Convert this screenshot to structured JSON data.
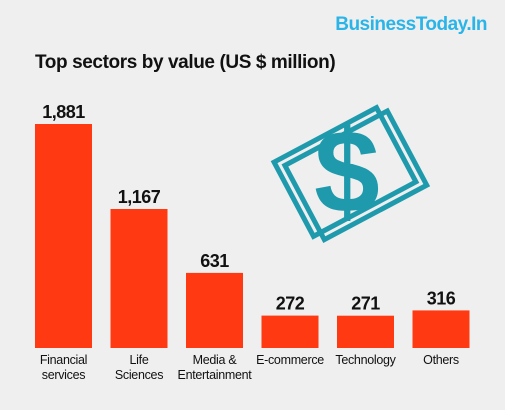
{
  "brand": {
    "name": "BusinessToday.In",
    "color": "#2ab4e8"
  },
  "chart_data": {
    "type": "bar",
    "title": "Top sectors by value (US $ million)",
    "categories": [
      "Financial\nservices",
      "Life\nSciences",
      "Media &\nEntertainment",
      "E-commerce",
      "Technology",
      "Others"
    ],
    "values": [
      1881,
      1167,
      631,
      272,
      271,
      316
    ],
    "value_labels": [
      "1,881",
      "1,167",
      "631",
      "272",
      "271",
      "316"
    ],
    "xlabel": "",
    "ylabel": "",
    "ylim": [
      0,
      1881
    ],
    "grid": false,
    "legend": "none",
    "bar_color": "#ff3a12"
  },
  "decoration": {
    "icon": "dollar-bill-icon",
    "color": "#1f9aad"
  }
}
